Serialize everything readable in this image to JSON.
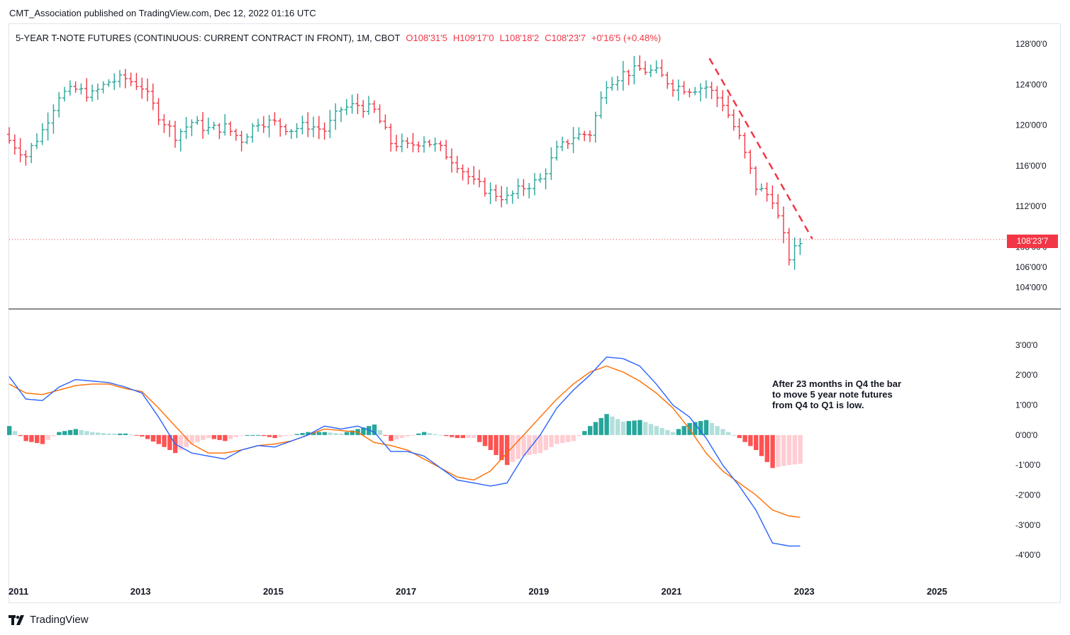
{
  "header": {
    "published": "CMT_Association published on TradingView.com, Dec 12, 2022 01:16 UTC"
  },
  "legend": {
    "symbol": "5-YEAR T-NOTE FUTURES (CONTINUOUS: CURRENT CONTRACT IN FRONT), 1M, CBOT",
    "open": "O108'31'5",
    "high": "H109'17'0",
    "low": "L108'18'2",
    "close": "C108'23'7",
    "change": "+0'16'5 (+0.48%)"
  },
  "price_tag": "108'23'7",
  "annotation": "After 23 months in Q4 the bar to move 5 year note futures from Q4 to Q1 is low.",
  "brand": "TradingView",
  "icons": {
    "brand_logo": "tradingview-logo-icon"
  },
  "colors": {
    "up": "#26a69a",
    "down": "#f23645",
    "hist_up_strong": "#26a69a",
    "hist_up_weak": "#b2dfdb",
    "hist_down_strong": "#ff5252",
    "hist_down_weak": "#ffcdd2",
    "macd_line": "#2962ff",
    "signal_line": "#ff6d00",
    "trendline": "#f23645"
  },
  "chart_data": [
    {
      "type": "line",
      "title": "5-YEAR T-NOTE FUTURES (CONTINUOUS: CURRENT CONTRACT IN FRONT), 1M, CBOT",
      "style": "ohlc-bars",
      "x_labels": [
        "2011",
        "2013",
        "2015",
        "2017",
        "2019",
        "2021",
        "2023",
        "2025"
      ],
      "y_ticks": [
        "104'00'0",
        "106'00'0",
        "108'00'0",
        "112'00'0",
        "116'00'0",
        "120'00'0",
        "124'00'0",
        "128'00'0"
      ],
      "y_tick_values": [
        104,
        106,
        108,
        112,
        116,
        120,
        124,
        128
      ],
      "ylim": [
        103,
        128.5
      ],
      "x": [
        "2011",
        "2011.25",
        "2011.5",
        "2011.75",
        "2012",
        "2012.25",
        "2012.5",
        "2012.75",
        "2013",
        "2013.25",
        "2013.5",
        "2013.75",
        "2014",
        "2014.25",
        "2014.5",
        "2014.75",
        "2015",
        "2015.25",
        "2015.5",
        "2015.75",
        "2016",
        "2016.25",
        "2016.5",
        "2016.75",
        "2017",
        "2017.25",
        "2017.5",
        "2017.75",
        "2018",
        "2018.25",
        "2018.5",
        "2018.75",
        "2019",
        "2019.25",
        "2019.5",
        "2019.75",
        "2020",
        "2020.25",
        "2020.5",
        "2020.75",
        "2021",
        "2021.25",
        "2021.5",
        "2021.75",
        "2022",
        "2022.25",
        "2022.5",
        "2022.75",
        "2022.95"
      ],
      "close": [
        118.5,
        117.0,
        119.5,
        123.0,
        123.5,
        123.0,
        124.3,
        124.6,
        123.8,
        121.0,
        119.0,
        120.3,
        119.6,
        119.8,
        118.6,
        120.4,
        120.2,
        119.6,
        120.0,
        119.5,
        121.6,
        122.0,
        121.4,
        118.3,
        117.9,
        118.6,
        117.6,
        116.2,
        114.3,
        113.4,
        112.8,
        113.9,
        114.6,
        117.5,
        118.9,
        119.2,
        124.2,
        125.1,
        125.5,
        125.2,
        123.9,
        123.6,
        123.8,
        122.2,
        118.7,
        113.9,
        112.8,
        107.0,
        108.7
      ],
      "trendline": [
        {
          "x": "2021.55",
          "y": 126.6
        },
        {
          "x": "2023.1",
          "y": 108.8
        }
      ],
      "last_price_line": 108.74
    },
    {
      "type": "line",
      "title": "MACD",
      "y_ticks": [
        "3'00'0",
        "2'00'0",
        "1'00'0",
        "0'00'0",
        "-1'00'0",
        "-2'00'0",
        "-3'00'0",
        "-4'00'0"
      ],
      "y_tick_values": [
        3,
        2,
        1,
        0,
        -1,
        -2,
        -3,
        -4
      ],
      "ylim": [
        -4.4,
        3.4
      ],
      "x": [
        "2011",
        "2011.25",
        "2011.5",
        "2011.75",
        "2012",
        "2012.25",
        "2012.5",
        "2012.75",
        "2013",
        "2013.25",
        "2013.5",
        "2013.75",
        "2014",
        "2014.25",
        "2014.5",
        "2014.75",
        "2015",
        "2015.25",
        "2015.5",
        "2015.75",
        "2016",
        "2016.25",
        "2016.5",
        "2016.75",
        "2017",
        "2017.25",
        "2017.5",
        "2017.75",
        "2018",
        "2018.25",
        "2018.5",
        "2018.75",
        "2019",
        "2019.25",
        "2019.5",
        "2019.75",
        "2020",
        "2020.25",
        "2020.5",
        "2020.75",
        "2021",
        "2021.25",
        "2021.5",
        "2021.75",
        "2022",
        "2022.25",
        "2022.5",
        "2022.75",
        "2022.95"
      ],
      "series": [
        {
          "name": "",
          "values": [
            1.95,
            1.2,
            1.15,
            1.6,
            1.85,
            1.8,
            1.75,
            1.6,
            1.4,
            0.6,
            -0.3,
            -0.6,
            -0.7,
            -0.8,
            -0.5,
            -0.35,
            -0.4,
            -0.2,
            0.0,
            0.3,
            0.2,
            0.3,
            0.1,
            -0.55,
            -0.55,
            -0.7,
            -1.1,
            -1.5,
            -1.6,
            -1.7,
            -1.6,
            -0.7,
            0.0,
            0.9,
            1.5,
            2.0,
            2.6,
            2.55,
            2.3,
            1.7,
            1.0,
            0.6,
            -0.1,
            -1.0,
            -1.7,
            -2.5,
            -3.6,
            -3.7,
            -3.7
          ]
        },
        {
          "name": "",
          "values": [
            1.7,
            1.4,
            1.35,
            1.5,
            1.65,
            1.7,
            1.7,
            1.55,
            1.45,
            0.9,
            0.3,
            -0.3,
            -0.6,
            -0.6,
            -0.5,
            -0.35,
            -0.3,
            -0.2,
            0.0,
            0.2,
            0.15,
            0.1,
            -0.25,
            -0.35,
            -0.5,
            -0.8,
            -1.1,
            -1.4,
            -1.5,
            -1.2,
            -0.6,
            0.0,
            0.6,
            1.2,
            1.7,
            2.1,
            2.3,
            2.1,
            1.8,
            1.4,
            0.9,
            0.2,
            -0.6,
            -1.2,
            -1.6,
            -2.0,
            -2.5,
            -2.7,
            -2.75
          ]
        }
      ],
      "histogram": [
        0.3,
        -0.2,
        -0.3,
        0.1,
        0.2,
        0.1,
        0.05,
        0.05,
        -0.05,
        -0.3,
        -0.6,
        -0.3,
        -0.1,
        -0.2,
        0.0,
        0.0,
        -0.1,
        0.0,
        0.1,
        0.1,
        0.05,
        0.2,
        0.35,
        -0.2,
        -0.05,
        0.1,
        0.0,
        -0.1,
        -0.1,
        -0.5,
        -1.0,
        -0.7,
        -0.6,
        -0.3,
        -0.2,
        0.3,
        0.7,
        0.45,
        0.5,
        0.3,
        0.1,
        0.4,
        0.5,
        0.2,
        -0.1,
        -0.5,
        -1.1,
        -1.0,
        -0.95
      ]
    }
  ]
}
